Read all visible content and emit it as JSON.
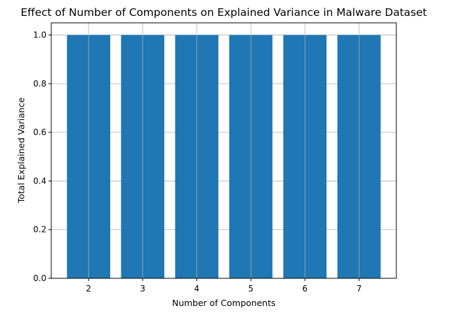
{
  "chart_data": {
    "type": "bar",
    "title": "Effect of Number of Components on Explained Variance in Malware Dataset",
    "xlabel": "Number of Components",
    "ylabel": "Total Explained Variance",
    "categories": [
      "2",
      "3",
      "4",
      "5",
      "6",
      "7"
    ],
    "values": [
      1.0,
      1.0,
      1.0,
      1.0,
      1.0,
      1.0
    ],
    "ylim": [
      0,
      1.05
    ],
    "yticks": [
      "0.0",
      "0.2",
      "0.4",
      "0.6",
      "0.8",
      "1.0"
    ],
    "grid": true,
    "bar_color": "#1f77b4"
  }
}
